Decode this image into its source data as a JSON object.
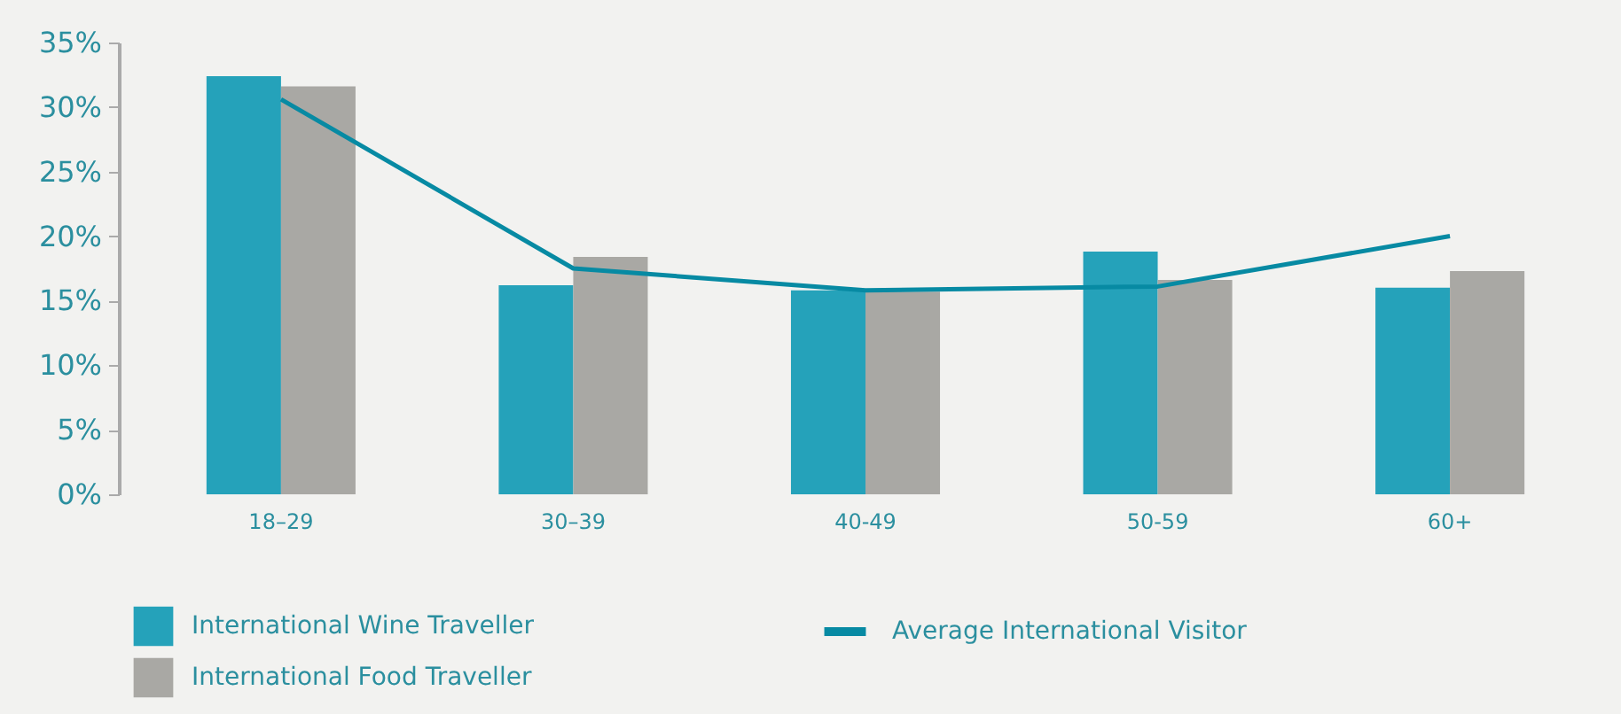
{
  "chart_data": {
    "type": "bar",
    "categories": [
      "18–29",
      "30–39",
      "40-49",
      "50-59",
      "60+"
    ],
    "series": [
      {
        "name": "International Wine Traveller",
        "color": "#25a2ba",
        "values": [
          32.4,
          16.2,
          15.8,
          18.8,
          16.0
        ]
      },
      {
        "name": "International Food Traveller",
        "color": "#a9a8a4",
        "values": [
          31.6,
          18.4,
          15.7,
          16.6,
          17.3
        ]
      },
      {
        "name": "Average International Visitor",
        "type": "line",
        "color": "#078aa3",
        "values": [
          30.6,
          17.5,
          15.8,
          16.1,
          20.0
        ]
      }
    ],
    "ylim": [
      0,
      35
    ],
    "yticks": [
      {
        "value": 0,
        "label": "0%"
      },
      {
        "value": 5,
        "label": "5%"
      },
      {
        "value": 10,
        "label": "10%"
      },
      {
        "value": 15,
        "label": "15%"
      },
      {
        "value": 20,
        "label": "20%"
      },
      {
        "value": 25,
        "label": "25%"
      },
      {
        "value": 30,
        "label": "30%"
      },
      {
        "value": 35,
        "label": "35%"
      }
    ],
    "grid": false,
    "legend": "bottom"
  }
}
